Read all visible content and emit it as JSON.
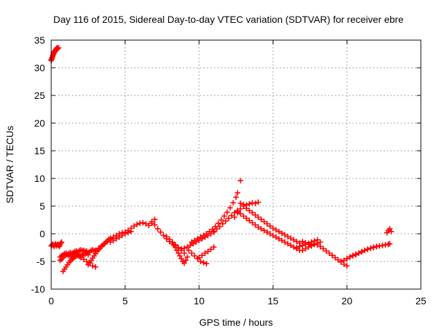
{
  "chart_data": {
    "type": "scatter",
    "title": "Day 116 of 2015, Sidereal Day-to-day VTEC variation (SDTVAR) for receiver ebre",
    "xlabel": "GPS time / hours",
    "ylabel": "SDTVAR / TECUs",
    "xlim": [
      0,
      25
    ],
    "ylim": [
      -10,
      35
    ],
    "xticks": [
      "0",
      "5",
      "10",
      "15",
      "20",
      "25"
    ],
    "yticks": [
      "-10",
      "-5",
      "0",
      "5",
      "10",
      "15",
      "20",
      "25",
      "30",
      "35"
    ],
    "grid": true,
    "marker": "+",
    "color": "#ff0000",
    "series": [
      {
        "name": "SDTVAR",
        "x": [
          0.0,
          0.05,
          0.1,
          0.15,
          0.2,
          0.25,
          0.3,
          0.35,
          0.4,
          0.45,
          0.5,
          0.0,
          0.05,
          0.1,
          0.15,
          0.2,
          0.25,
          0.3,
          0.35,
          0.4,
          0.0,
          0.05,
          0.1,
          0.15,
          0.2,
          0.25,
          0.3,
          0.35,
          0.4,
          0.45,
          0.5,
          0.55,
          0.6,
          0.65,
          0.7,
          0.6,
          0.7,
          0.8,
          0.9,
          1.0,
          1.1,
          1.2,
          1.3,
          1.4,
          1.5,
          1.6,
          1.7,
          1.8,
          1.9,
          2.0,
          2.1,
          2.2,
          2.3,
          2.4,
          2.5,
          2.6,
          2.7,
          2.8,
          2.9,
          3.0,
          0.6,
          0.7,
          0.8,
          0.9,
          1.0,
          1.1,
          1.2,
          1.3,
          1.4,
          1.5,
          1.6,
          1.7,
          1.8,
          1.9,
          2.0,
          2.1,
          2.2,
          2.3,
          2.4,
          2.5,
          0.8,
          0.9,
          1.0,
          1.1,
          1.2,
          1.3,
          1.4,
          1.5,
          1.6,
          1.7,
          1.8,
          1.9,
          2.0,
          2.2,
          2.4,
          2.6,
          2.8,
          3.0,
          2.5,
          2.6,
          2.7,
          2.8,
          2.9,
          3.0,
          3.1,
          3.2,
          3.3,
          3.4,
          3.5,
          3.6,
          3.7,
          3.8,
          3.9,
          4.0,
          3.0,
          3.2,
          3.4,
          3.6,
          3.8,
          4.0,
          4.2,
          4.4,
          4.6,
          4.8,
          5.0,
          5.2,
          5.4,
          5.6,
          5.8,
          6.0,
          6.2,
          6.4,
          6.6,
          6.8,
          7.0,
          4.0,
          4.2,
          4.4,
          4.6,
          4.8,
          5.0,
          5.2,
          5.4,
          6.8,
          7.0,
          7.2,
          7.4,
          7.6,
          7.8,
          8.0,
          8.2,
          8.4,
          8.6,
          8.8,
          9.0,
          9.2,
          9.4,
          9.6,
          9.8,
          10.0,
          10.2,
          10.4,
          10.6,
          10.8,
          11.0,
          7.8,
          8.0,
          8.2,
          8.4,
          8.6,
          8.8,
          9.0,
          8.3,
          8.4,
          8.5,
          8.6,
          8.7,
          8.8,
          8.9,
          9.0,
          9.1,
          9.2,
          9.3,
          9.5,
          9.7,
          9.9,
          10.1,
          10.3,
          10.5,
          10.0,
          10.2,
          10.4,
          10.6,
          10.8,
          11.0,
          9.5,
          9.7,
          9.9,
          10.1,
          10.3,
          10.5,
          10.7,
          10.9,
          11.1,
          11.3,
          11.5,
          11.7,
          11.9,
          12.1,
          12.3,
          12.5,
          12.6,
          11.0,
          11.2,
          11.4,
          11.6,
          11.8,
          12.0,
          12.2,
          12.4,
          12.6,
          12.8,
          12.4,
          12.6,
          12.8,
          13.0,
          13.2,
          13.4,
          13.6,
          13.8,
          14.0,
          14.2,
          14.4,
          14.6,
          14.8,
          15.0,
          15.2,
          15.4,
          15.6,
          15.8,
          16.0,
          16.2,
          16.4,
          16.6,
          16.8,
          17.0,
          17.2,
          17.4,
          17.6,
          17.8,
          18.0,
          18.2,
          18.4,
          18.6,
          18.8,
          19.0,
          19.2,
          19.4,
          19.6,
          19.8,
          20.0,
          12.8,
          13.0,
          13.2,
          13.4,
          13.6,
          13.8,
          14.0,
          12.6,
          12.8,
          13.0,
          13.2,
          13.4,
          13.6,
          13.8,
          14.0,
          14.2,
          14.4,
          14.6,
          14.8,
          15.0,
          15.2,
          15.4,
          15.6,
          15.8,
          16.0,
          16.2,
          16.4,
          16.6,
          16.8,
          17.0,
          17.2,
          17.4,
          17.6,
          17.8,
          18.0,
          18.2,
          16.6,
          16.8,
          17.0,
          17.2,
          17.4,
          17.6,
          17.8,
          18.0,
          19.6,
          19.8,
          20.0,
          20.2,
          20.4,
          20.6,
          20.8,
          21.0,
          21.2,
          21.4,
          21.6,
          21.8,
          22.0,
          22.2,
          22.4,
          22.6,
          22.8,
          20.0,
          20.2,
          20.4,
          20.6,
          20.8,
          21.0,
          21.2,
          21.4,
          21.6,
          21.8,
          22.0,
          22.2,
          22.4,
          22.6,
          22.8,
          22.9,
          22.7,
          22.8,
          22.9,
          23.0
        ],
        "y": [
          31.5,
          31.8,
          32.2,
          32.6,
          32.9,
          33.1,
          33.3,
          33.5,
          33.6,
          33.5,
          33.6,
          31.3,
          31.6,
          32.0,
          32.4,
          32.7,
          32.9,
          33.1,
          33.3,
          33.4,
          -2.2,
          -2.0,
          -1.9,
          -2.1,
          -2.3,
          -2.0,
          -1.8,
          -2.2,
          -2.0,
          -1.9,
          -2.1,
          -2.3,
          -2.0,
          -1.7,
          -1.5,
          -4.8,
          -4.6,
          -4.3,
          -4.0,
          -3.8,
          -3.7,
          -3.5,
          -3.4,
          -3.6,
          -3.4,
          -3.2,
          -3.1,
          -3.3,
          -3.0,
          -2.9,
          -3.1,
          -3.0,
          -3.2,
          -3.1,
          -3.4,
          -3.3,
          -3.0,
          -2.9,
          -3.1,
          -3.0,
          -4.2,
          -4.0,
          -3.8,
          -3.6,
          -3.5,
          -3.8,
          -4.0,
          -3.9,
          -4.1,
          -3.7,
          -3.5,
          -3.6,
          -3.8,
          -3.9,
          -4.0,
          -3.8,
          -3.6,
          -3.7,
          -3.5,
          -3.8,
          -6.8,
          -6.4,
          -6.0,
          -5.6,
          -5.2,
          -4.9,
          -4.6,
          -4.4,
          -4.2,
          -4.0,
          -3.9,
          -4.1,
          -4.3,
          -4.6,
          -5.0,
          -5.3,
          -5.8,
          -6.0,
          -5.6,
          -5.2,
          -4.8,
          -4.4,
          -4.0,
          -3.6,
          -3.2,
          -2.9,
          -2.6,
          -2.3,
          -2.0,
          -1.8,
          -1.5,
          -1.3,
          -1.0,
          -0.8,
          -3.0,
          -2.6,
          -2.2,
          -1.8,
          -1.4,
          -1.0,
          -0.6,
          -0.3,
          0.0,
          0.2,
          0.3,
          0.6,
          1.0,
          1.4,
          1.7,
          1.9,
          2.0,
          1.8,
          1.5,
          1.9,
          2.6,
          -1.5,
          -1.2,
          -0.9,
          -0.6,
          -0.3,
          0.0,
          0.2,
          0.4,
          2.2,
          1.6,
          0.9,
          0.3,
          -0.3,
          -0.9,
          -1.4,
          -1.8,
          -2.2,
          -2.5,
          -2.7,
          -2.6,
          -2.4,
          -2.1,
          -1.8,
          -1.5,
          -1.2,
          -0.9,
          -0.6,
          -0.3,
          0.0,
          0.3,
          -0.5,
          -1.0,
          -1.5,
          -2.0,
          -2.5,
          -3.0,
          -3.5,
          -2.0,
          -2.5,
          -3.0,
          -3.5,
          -4.0,
          -4.5,
          -5.0,
          -5.3,
          -4.8,
          -4.2,
          -3.0,
          -3.5,
          -4.0,
          -4.5,
          -5.0,
          -5.2,
          -5.4,
          -4.3,
          -3.9,
          -3.5,
          -3.2,
          -2.8,
          -2.4,
          -1.5,
          -1.2,
          -0.9,
          -0.6,
          -0.3,
          0.0,
          0.4,
          0.8,
          1.3,
          1.9,
          2.5,
          3.2,
          3.9,
          4.7,
          5.6,
          6.6,
          7.4,
          0.5,
          0.9,
          1.3,
          1.8,
          2.3,
          2.8,
          3.3,
          3.8,
          4.2,
          9.6,
          3.0,
          3.8,
          4.5,
          5.0,
          4.6,
          4.2,
          3.8,
          3.4,
          3.0,
          2.6,
          2.2,
          1.8,
          1.4,
          1.0,
          0.7,
          0.4,
          0.1,
          -0.2,
          -0.5,
          -0.8,
          -1.1,
          -1.4,
          -1.7,
          -1.4,
          -1.6,
          -1.9,
          -2.2,
          -1.8,
          -2.0,
          -2.3,
          -2.7,
          -3.1,
          -3.5,
          -3.9,
          -4.3,
          -4.7,
          -5.1,
          -5.5,
          -5.8,
          5.5,
          5.3,
          5.2,
          5.4,
          5.6,
          5.5,
          5.7,
          4.0,
          3.6,
          3.2,
          2.8,
          2.4,
          2.0,
          1.6,
          1.2,
          0.9,
          0.6,
          0.3,
          0.0,
          -0.3,
          -0.6,
          -0.9,
          -1.2,
          -1.5,
          -1.8,
          -2.1,
          -2.4,
          -2.7,
          -3.0,
          -3.0,
          -2.7,
          -2.4,
          -2.1,
          -1.9,
          -1.7,
          -1.5,
          -2.5,
          -2.3,
          -2.1,
          -1.9,
          -1.7,
          -1.5,
          -1.3,
          -1.1,
          -5.0,
          -4.8,
          -4.5,
          -4.2,
          -4.0,
          -3.8,
          -3.5,
          -3.2,
          -3.0,
          -2.8,
          -2.6,
          -2.5,
          -2.3,
          -2.2,
          -2.1,
          -2.0,
          -1.9,
          -4.5,
          -4.2,
          -3.9,
          -3.7,
          -3.5,
          -3.3,
          -3.0,
          -2.8,
          -2.6,
          -2.4,
          -2.3,
          -2.2,
          -2.1,
          -2.0,
          -1.9,
          -1.8,
          0.2,
          0.6,
          0.9,
          0.4
        ]
      }
    ]
  }
}
